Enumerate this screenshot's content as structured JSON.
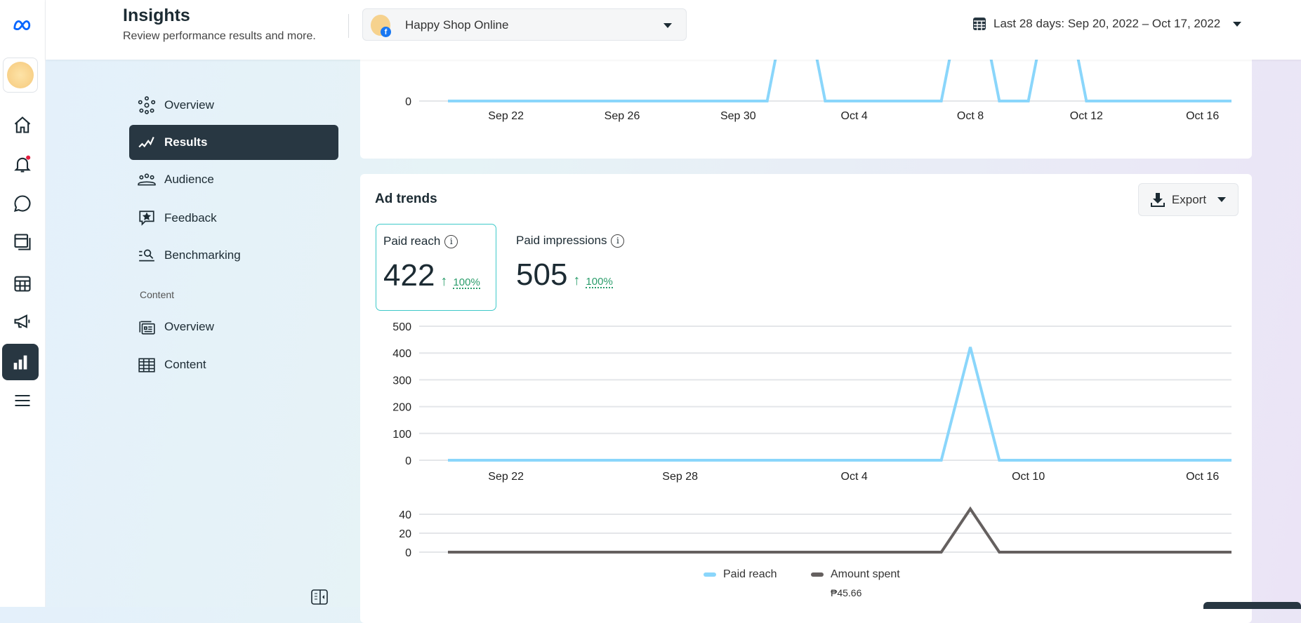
{
  "header": {
    "title": "Insights",
    "subtitle": "Review performance results and more.",
    "page_selector": "Happy Shop Online",
    "date_range": "Last 28 days: Sep 20, 2022 – Oct 17, 2022"
  },
  "rail": {
    "icons": [
      "meta-logo-icon",
      "page-avatar",
      "home-icon",
      "bell-icon",
      "chat-icon",
      "pages-icon",
      "calendar-icon",
      "megaphone-icon",
      "insights-bar-chart-icon",
      "menu-icon"
    ],
    "notification_dot_color": "#e41e3f"
  },
  "nav": {
    "items": [
      {
        "label": "Overview"
      },
      {
        "label": "Results",
        "active": true
      },
      {
        "label": "Audience"
      },
      {
        "label": "Feedback"
      },
      {
        "label": "Benchmarking"
      }
    ],
    "content_section": "Content",
    "content_items": [
      {
        "label": "Overview"
      },
      {
        "label": "Content"
      }
    ]
  },
  "ad_trends": {
    "title": "Ad trends",
    "export_label": "Export",
    "metrics": [
      {
        "label": "Paid reach",
        "value": "422",
        "change": "100%",
        "selected": true
      },
      {
        "label": "Paid impressions",
        "value": "505",
        "change": "100%"
      }
    ],
    "legend": [
      {
        "label": "Paid reach",
        "color": "#8ad6fb"
      },
      {
        "label": "Amount spent",
        "color": "#65605f",
        "total": "₱45.66"
      }
    ]
  },
  "chart_data": [
    {
      "type": "line",
      "x_ticks": [
        "Sep 22",
        "Sep 26",
        "Sep 30",
        "Oct 4",
        "Oct 8",
        "Oct 12",
        "Oct 16"
      ],
      "y_ticks": [
        "0"
      ],
      "x_start": "Sep 20",
      "x_end": "Oct 17",
      "series": [
        {
          "color": "#8ad6fb",
          "values": [
            0,
            0,
            0,
            0,
            0,
            0,
            0,
            0,
            0,
            0,
            0,
            0,
            null,
            0,
            0,
            0,
            0,
            0,
            null,
            0,
            0,
            null,
            0,
            0,
            0,
            0,
            0,
            0
          ]
        }
      ],
      "note_values": "null = peak above visible area"
    },
    {
      "type": "line",
      "x_ticks": [
        "Sep 22",
        "Sep 28",
        "Oct 4",
        "Oct 10",
        "Oct 16"
      ],
      "y_ticks": [
        "0",
        "100",
        "200",
        "300",
        "400",
        "500"
      ],
      "ylim": [
        0,
        500
      ],
      "x_start": "Sep 20",
      "x_end": "Oct 17",
      "grid": true,
      "series": [
        {
          "name": "Paid reach",
          "color": "#8ad6fb",
          "values": [
            0,
            0,
            0,
            0,
            0,
            0,
            0,
            0,
            0,
            0,
            0,
            0,
            0,
            0,
            0,
            0,
            0,
            0,
            422,
            0,
            0,
            0,
            0,
            0,
            0,
            0,
            0,
            0
          ]
        }
      ]
    },
    {
      "type": "line",
      "y_ticks": [
        "0",
        "20",
        "40"
      ],
      "ylim": [
        0,
        45.66
      ],
      "x_start": "Sep 20",
      "x_end": "Oct 17",
      "grid": true,
      "series": [
        {
          "name": "Amount spent",
          "color": "#65605f",
          "values": [
            0,
            0,
            0,
            0,
            0,
            0,
            0,
            0,
            0,
            0,
            0,
            0,
            0,
            0,
            0,
            0,
            0,
            0,
            45.66,
            0,
            0,
            0,
            0,
            0,
            0,
            0,
            0,
            0
          ]
        }
      ]
    }
  ]
}
